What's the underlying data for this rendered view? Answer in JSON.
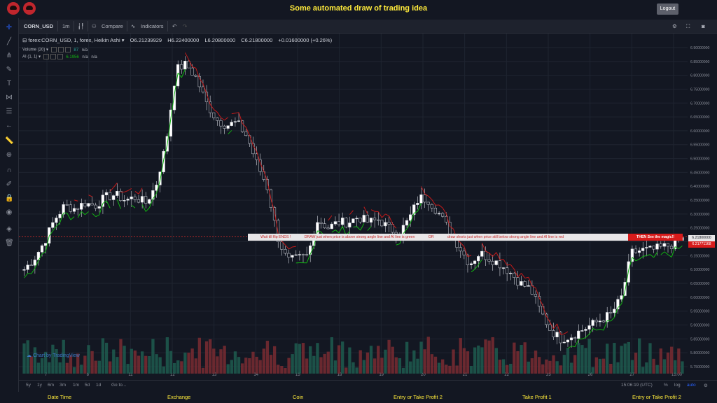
{
  "header": {
    "title": "Some automated draw of trading idea",
    "logout": "Logout"
  },
  "toolbar": {
    "symbol": "CORN_USD",
    "interval": "1m",
    "compare": "Compare",
    "indicators": "Indicators"
  },
  "legend": {
    "symbol": "forex:CORN_USD, 1, forex, Heikin Ashi",
    "o": "O6.21239929",
    "h": "H6.22400000",
    "l": "L6.20800000",
    "c": "C6.21800000",
    "change": "+0.01600000 (+0.26%)",
    "volume_label": "Volume (20)",
    "volume_value": "87",
    "volume_na": "n/a",
    "ai_label": "AI (1, 1)",
    "ai_value": "6.1956",
    "ai_na1": "n/a",
    "ai_na2": "n/a"
  },
  "annotation": {
    "part1": "Wait till flip ENDS !",
    "part2": "DRAW just when price is above strong angle line and AI line is green",
    "or": "OR",
    "part3": "draw shorts just when price still below strong angle line and AI line is red",
    "magic": "THEN See the magic!!"
  },
  "price_tags": {
    "current": "6.21800000",
    "marker": "6.21771168"
  },
  "watermark": "Chart by TradingView",
  "bottom": {
    "ranges": [
      "5y",
      "1y",
      "6m",
      "3m",
      "1m",
      "5d",
      "1d"
    ],
    "goto": "Go to...",
    "time": "15:06:19 (UTC)",
    "pct": "%",
    "log": "log",
    "auto": "auto"
  },
  "footer": {
    "items": [
      "Date Time",
      "Exchange",
      "Coin",
      "Entry or Take Profit 2",
      "Take Profit 1",
      "Entry or Take Profit 2"
    ]
  },
  "colors": {
    "bg": "#131722",
    "up": "#26a69a",
    "down": "#ef5350",
    "ai_green": "#12b312",
    "ai_red": "#c41a1a",
    "title": "#ffeb3b"
  },
  "chart_data": {
    "type": "candlestick",
    "x_ticks": [
      "7",
      "8",
      "11",
      "12",
      "13",
      "14",
      "15",
      "18",
      "19",
      "20",
      "21",
      "22",
      "25",
      "26",
      "27",
      "15:00"
    ],
    "y_ticks": [
      6.9,
      6.85,
      6.8,
      6.75,
      6.7,
      6.65,
      6.6,
      6.55,
      6.5,
      6.45,
      6.4,
      6.35,
      6.3,
      6.25,
      6.2,
      6.15,
      6.1,
      6.05,
      6.0,
      5.95,
      5.9,
      5.85,
      5.8,
      5.75
    ],
    "ylim": [
      5.74,
      6.92
    ],
    "close_path": [
      6.1,
      6.14,
      6.2,
      6.28,
      6.33,
      6.32,
      6.34,
      6.33,
      6.36,
      6.37,
      6.35,
      6.36,
      6.34,
      6.4,
      6.55,
      6.82,
      6.84,
      6.79,
      6.7,
      6.64,
      6.62,
      6.63,
      6.58,
      6.48,
      6.4,
      6.22,
      6.13,
      6.14,
      6.15,
      6.28,
      6.25,
      6.27,
      6.27,
      6.29,
      6.27,
      6.28,
      6.25,
      6.23,
      6.28,
      6.36,
      6.35,
      6.3,
      6.24,
      6.18,
      6.12,
      6.16,
      6.14,
      6.12,
      6.09,
      6.05,
      6.03,
      5.95,
      5.88,
      5.85,
      5.86,
      5.88,
      5.9,
      5.92,
      5.94,
      6.0,
      6.16,
      6.17,
      6.17,
      6.18,
      6.19,
      6.21
    ],
    "ai_line": {
      "green": "below price in uptrends",
      "red": "above price in downtrends"
    }
  }
}
